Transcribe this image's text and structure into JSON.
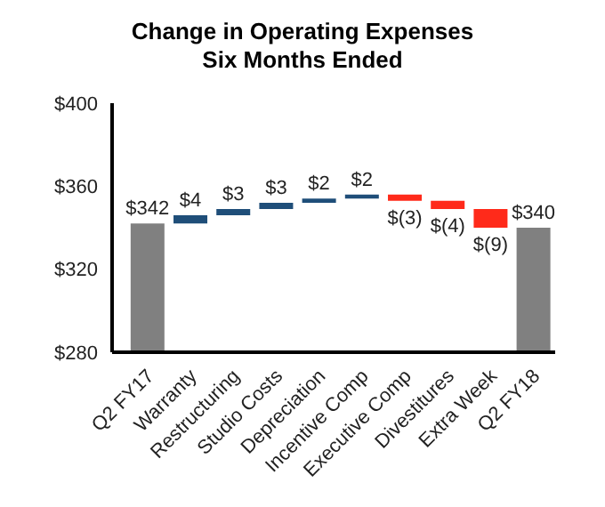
{
  "chart_data": {
    "type": "bar",
    "title": "Change in Operating Expenses Six Months Ended",
    "categories": [
      "Q2 FY17",
      "Warranty",
      "Restructuring",
      "Studio Costs",
      "Depreciation",
      "Incentive Comp",
      "Executive Comp",
      "Divestitures",
      "Extra Week",
      "Q2 FY18"
    ],
    "values": [
      342,
      4,
      3,
      3,
      2,
      2,
      -3,
      -4,
      -9,
      340
    ],
    "base": [
      null,
      342,
      346,
      349,
      352,
      354,
      356,
      353,
      349,
      null
    ],
    "colors": [
      "#808080",
      "#1f4e79",
      "#1f4e79",
      "#1f4e79",
      "#1f4e79",
      "#1f4e79",
      "#ff2a1a",
      "#ff2a1a",
      "#ff2a1a",
      "#808080"
    ],
    "value_labels": [
      "$342",
      "$4",
      "$3",
      "$3",
      "$2",
      "$2",
      "$(3)",
      "$(4)",
      "$(9)",
      "$340"
    ],
    "ylim": [
      280,
      400
    ],
    "yticks": [
      {
        "value": 280,
        "label": "$280"
      },
      {
        "value": 320,
        "label": "$320"
      },
      {
        "value": 360,
        "label": "$360"
      },
      {
        "value": 400,
        "label": "$400"
      }
    ]
  }
}
